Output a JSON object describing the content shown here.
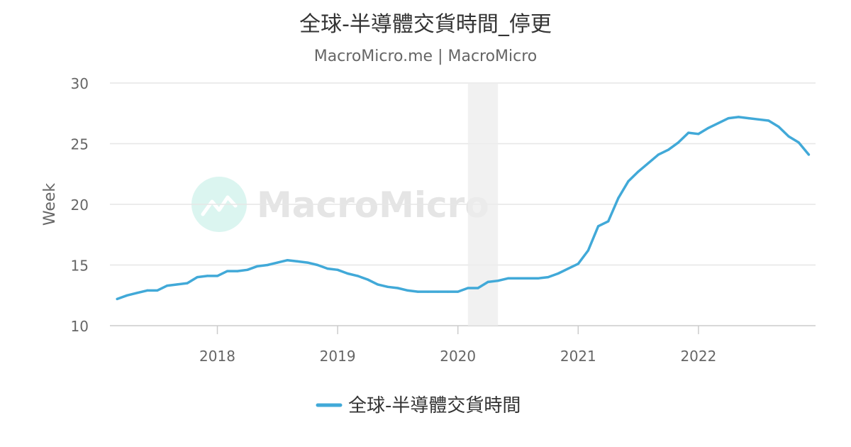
{
  "chart_data": {
    "type": "line",
    "title": "全球-半導體交貨時間_停更",
    "subtitle": "MacroMicro.me | MacroMicro",
    "ylabel": "Week",
    "xlabel": "",
    "ylim": [
      10,
      30
    ],
    "yticks": [
      10,
      15,
      20,
      25,
      30
    ],
    "xticks": [
      "2018",
      "2019",
      "2020",
      "2021",
      "2022"
    ],
    "grid": true,
    "legend_position": "bottom-center",
    "watermark": "MacroMicro",
    "shaded_period": {
      "start": "2020-02",
      "end": "2020-04"
    },
    "series": [
      {
        "name": "全球-半導體交貨時間",
        "color": "#41a9d8",
        "x": [
          "2017-03",
          "2017-04",
          "2017-05",
          "2017-06",
          "2017-07",
          "2017-08",
          "2017-09",
          "2017-10",
          "2017-11",
          "2017-12",
          "2018-01",
          "2018-02",
          "2018-03",
          "2018-04",
          "2018-05",
          "2018-06",
          "2018-07",
          "2018-08",
          "2018-09",
          "2018-10",
          "2018-11",
          "2018-12",
          "2019-01",
          "2019-02",
          "2019-03",
          "2019-04",
          "2019-05",
          "2019-06",
          "2019-07",
          "2019-08",
          "2019-09",
          "2019-10",
          "2019-11",
          "2019-12",
          "2020-01",
          "2020-02",
          "2020-03",
          "2020-04",
          "2020-05",
          "2020-06",
          "2020-07",
          "2020-08",
          "2020-09",
          "2020-10",
          "2020-11",
          "2020-12",
          "2021-01",
          "2021-02",
          "2021-03",
          "2021-04",
          "2021-05",
          "2021-06",
          "2021-07",
          "2021-08",
          "2021-09",
          "2021-10",
          "2021-11",
          "2021-12",
          "2022-01",
          "2022-02",
          "2022-03",
          "2022-04",
          "2022-05",
          "2022-06",
          "2022-07",
          "2022-08",
          "2022-09",
          "2022-10",
          "2022-11",
          "2022-12"
        ],
        "values": [
          12.2,
          12.5,
          12.7,
          12.9,
          12.9,
          13.3,
          13.4,
          13.5,
          14.0,
          14.1,
          14.1,
          14.5,
          14.5,
          14.6,
          14.9,
          15.0,
          15.2,
          15.4,
          15.3,
          15.2,
          15.0,
          14.7,
          14.6,
          14.3,
          14.1,
          13.8,
          13.4,
          13.2,
          13.1,
          12.9,
          12.8,
          12.8,
          12.8,
          12.8,
          12.8,
          13.1,
          13.1,
          13.6,
          13.7,
          13.9,
          13.9,
          13.9,
          13.9,
          14.0,
          14.3,
          14.7,
          15.1,
          16.2,
          18.2,
          18.6,
          20.5,
          21.9,
          22.7,
          23.4,
          24.1,
          24.5,
          25.1,
          25.9,
          25.8,
          26.3,
          26.7,
          27.1,
          27.2,
          27.1,
          27.0,
          26.9,
          26.4,
          25.6,
          25.1,
          24.1
        ]
      }
    ]
  }
}
